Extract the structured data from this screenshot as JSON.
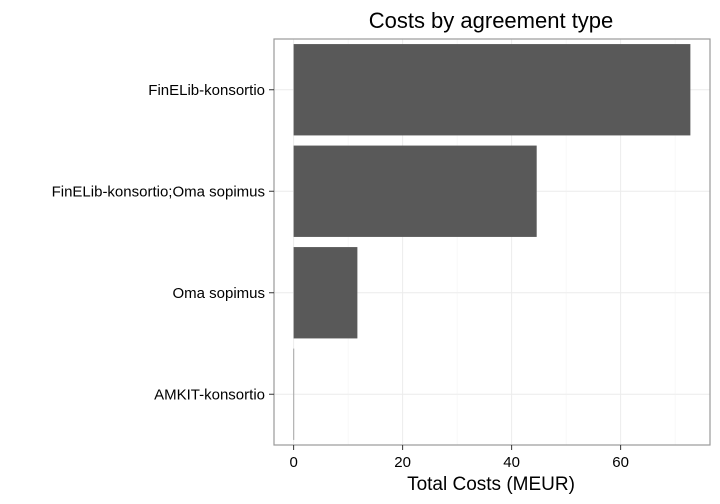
{
  "chart_data": {
    "type": "bar",
    "orientation": "horizontal",
    "title": "Costs by agreement type",
    "xlabel": "Total Costs (MEUR)",
    "ylabel": "",
    "categories": [
      "FinELib-konsortio",
      "FinELib-konsortio;Oma sopimus",
      "Oma sopimus",
      "AMKIT-konsortio"
    ],
    "values": [
      72.8,
      44.6,
      11.7,
      0.02
    ],
    "xlim": [
      -3.6,
      76.4
    ],
    "xticks": [
      0,
      20,
      40,
      60
    ],
    "grid": true,
    "legend": "none",
    "bar_color": "#595959"
  }
}
